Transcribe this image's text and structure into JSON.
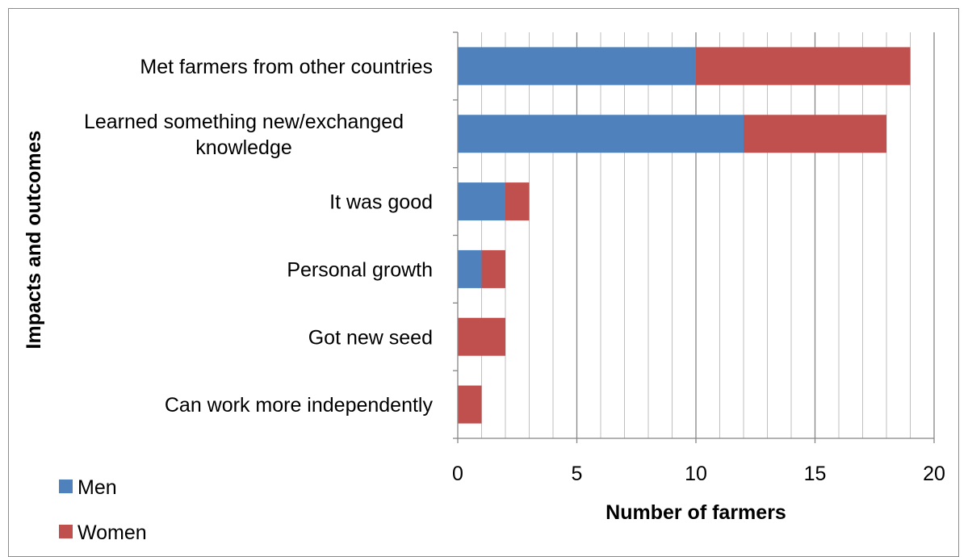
{
  "chart_data": {
    "type": "bar",
    "orientation": "horizontal",
    "stacked": true,
    "categories": [
      "Met farmers from other countries",
      "Learned something new/exchanged knowledge",
      "It was good",
      "Personal growth",
      "Got new seed",
      "Can work more independently"
    ],
    "series": [
      {
        "name": "Men",
        "color": "#4F81BD",
        "values": [
          10,
          12,
          2,
          1,
          0,
          0
        ]
      },
      {
        "name": "Women",
        "color": "#C0504D",
        "values": [
          9,
          6,
          1,
          1,
          2,
          1
        ]
      }
    ],
    "xlabel": "Number of farmers",
    "ylabel": "Impacts and outcomes",
    "xlim": [
      0,
      20
    ],
    "x_ticks": [
      0,
      5,
      10,
      15,
      20
    ],
    "minor_grid_step": 1,
    "grid": true,
    "legend": "bottom-left"
  }
}
